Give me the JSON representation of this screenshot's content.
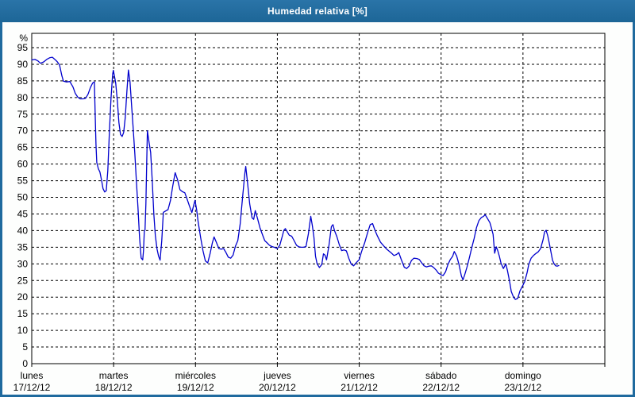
{
  "title_bar": {
    "title": "Humedad relativa [%]",
    "bg_color": "#1f6a9e",
    "text_color": "#ffffff"
  },
  "chart_data": {
    "type": "line",
    "title": "Humedad relativa [%]",
    "ylabel": "%",
    "ylim": [
      0,
      95
    ],
    "ytick_step": 5,
    "grid": "dashed",
    "legend": "none",
    "line_color": "#0000cd",
    "x_axis": {
      "unit": "day",
      "days": [
        {
          "name": "lunes",
          "date": "17/12/12"
        },
        {
          "name": "martes",
          "date": "18/12/12"
        },
        {
          "name": "miércoles",
          "date": "19/12/12"
        },
        {
          "name": "jueves",
          "date": "20/12/12"
        },
        {
          "name": "viernes",
          "date": "21/12/12"
        },
        {
          "name": "sábado",
          "date": "22/12/12"
        },
        {
          "name": "domingo",
          "date": "23/12/12"
        }
      ],
      "total_days": 7
    },
    "series": [
      {
        "points": [
          [
            0,
            91.3
          ],
          [
            0.039,
            91.5
          ],
          [
            0.077,
            91
          ],
          [
            0.106,
            90.3
          ],
          [
            0.145,
            90.7
          ],
          [
            0.184,
            91.5
          ],
          [
            0.223,
            92
          ],
          [
            0.252,
            92.1
          ],
          [
            0.281,
            91.5
          ],
          [
            0.31,
            90.8
          ],
          [
            0.339,
            89.8
          ],
          [
            0.368,
            86.5
          ],
          [
            0.387,
            84.9
          ],
          [
            0.426,
            84.7
          ],
          [
            0.465,
            84.8
          ],
          [
            0.503,
            83.2
          ],
          [
            0.532,
            81.2
          ],
          [
            0.562,
            80.1
          ],
          [
            0.591,
            79.6
          ],
          [
            0.629,
            79.6
          ],
          [
            0.658,
            79.8
          ],
          [
            0.687,
            81
          ],
          [
            0.716,
            83
          ],
          [
            0.745,
            84.4
          ],
          [
            0.765,
            84.7
          ],
          [
            0.774,
            76
          ],
          [
            0.784,
            66
          ],
          [
            0.794,
            60.5
          ],
          [
            0.813,
            58.6
          ],
          [
            0.833,
            57.6
          ],
          [
            0.852,
            55.2
          ],
          [
            0.871,
            52.6
          ],
          [
            0.891,
            51.6
          ],
          [
            0.91,
            52
          ],
          [
            0.929,
            58
          ],
          [
            0.949,
            70
          ],
          [
            0.968,
            79.5
          ],
          [
            0.988,
            87
          ],
          [
            0.997,
            88.2
          ],
          [
            1.017,
            85.5
          ],
          [
            1.026,
            84.3
          ],
          [
            1.046,
            78.8
          ],
          [
            1.065,
            72.5
          ],
          [
            1.084,
            68.9
          ],
          [
            1.104,
            68.3
          ],
          [
            1.123,
            69.5
          ],
          [
            1.142,
            74
          ],
          [
            1.162,
            82
          ],
          [
            1.181,
            88.3
          ],
          [
            1.2,
            84.7
          ],
          [
            1.22,
            77.6
          ],
          [
            1.239,
            70.7
          ],
          [
            1.259,
            63
          ],
          [
            1.278,
            55
          ],
          [
            1.297,
            47
          ],
          [
            1.317,
            38
          ],
          [
            1.336,
            31.8
          ],
          [
            1.355,
            31.2
          ],
          [
            1.365,
            34
          ],
          [
            1.375,
            39.8
          ],
          [
            1.384,
            40.2
          ],
          [
            1.394,
            48
          ],
          [
            1.404,
            60
          ],
          [
            1.413,
            70
          ],
          [
            1.433,
            66.5
          ],
          [
            1.452,
            63.5
          ],
          [
            1.472,
            55
          ],
          [
            1.491,
            45
          ],
          [
            1.51,
            38.5
          ],
          [
            1.53,
            34.5
          ],
          [
            1.549,
            32.3
          ],
          [
            1.568,
            31.1
          ],
          [
            1.588,
            37
          ],
          [
            1.607,
            45.5
          ],
          [
            1.636,
            45.9
          ],
          [
            1.665,
            46.3
          ],
          [
            1.694,
            49
          ],
          [
            1.723,
            53.5
          ],
          [
            1.752,
            57.4
          ],
          [
            1.781,
            55.3
          ],
          [
            1.81,
            52.3
          ],
          [
            1.839,
            51.7
          ],
          [
            1.869,
            51.4
          ],
          [
            1.898,
            49.4
          ],
          [
            1.927,
            47.3
          ],
          [
            1.956,
            45.4
          ],
          [
            1.975,
            47.3
          ],
          [
            1.994,
            49.1
          ],
          [
            2.014,
            46.3
          ],
          [
            2.033,
            42.5
          ],
          [
            2.062,
            38
          ],
          [
            2.091,
            34
          ],
          [
            2.12,
            30.9
          ],
          [
            2.149,
            30.3
          ],
          [
            2.178,
            33
          ],
          [
            2.207,
            36.4
          ],
          [
            2.227,
            38.1
          ],
          [
            2.256,
            36.4
          ],
          [
            2.285,
            34.6
          ],
          [
            2.314,
            34.4
          ],
          [
            2.343,
            34.6
          ],
          [
            2.372,
            33.4
          ],
          [
            2.401,
            32
          ],
          [
            2.43,
            31.7
          ],
          [
            2.459,
            32.6
          ],
          [
            2.488,
            35.3
          ],
          [
            2.517,
            37
          ],
          [
            2.546,
            42
          ],
          [
            2.575,
            50
          ],
          [
            2.604,
            57.5
          ],
          [
            2.614,
            59.3
          ],
          [
            2.633,
            55
          ],
          [
            2.662,
            48
          ],
          [
            2.691,
            43.8
          ],
          [
            2.711,
            43.4
          ],
          [
            2.73,
            46
          ],
          [
            2.759,
            43.5
          ],
          [
            2.788,
            40.8
          ],
          [
            2.817,
            38.8
          ],
          [
            2.846,
            37
          ],
          [
            2.875,
            36.3
          ],
          [
            2.904,
            35.6
          ],
          [
            2.933,
            35.2
          ],
          [
            2.972,
            34.9
          ],
          [
            3,
            34.6
          ],
          [
            3.03,
            35.6
          ],
          [
            3.059,
            38.2
          ],
          [
            3.079,
            40.1
          ],
          [
            3.098,
            40.6
          ],
          [
            3.117,
            39.8
          ],
          [
            3.146,
            38.6
          ],
          [
            3.175,
            38.3
          ],
          [
            3.204,
            37
          ],
          [
            3.234,
            35.6
          ],
          [
            3.263,
            35.1
          ],
          [
            3.292,
            35
          ],
          [
            3.321,
            35
          ],
          [
            3.35,
            35.2
          ],
          [
            3.379,
            39
          ],
          [
            3.408,
            44.3
          ],
          [
            3.427,
            41.5
          ],
          [
            3.447,
            38
          ],
          [
            3.466,
            32.3
          ],
          [
            3.485,
            30
          ],
          [
            3.514,
            28.9
          ],
          [
            3.543,
            29.8
          ],
          [
            3.563,
            33
          ],
          [
            3.582,
            32.6
          ],
          [
            3.601,
            31.2
          ],
          [
            3.63,
            35.5
          ],
          [
            3.66,
            41.2
          ],
          [
            3.679,
            41.8
          ],
          [
            3.698,
            40
          ],
          [
            3.727,
            38.2
          ],
          [
            3.756,
            35.8
          ],
          [
            3.785,
            34
          ],
          [
            3.814,
            34.2
          ],
          [
            3.843,
            33.9
          ],
          [
            3.872,
            31.7
          ],
          [
            3.902,
            29.9
          ],
          [
            3.931,
            29.4
          ],
          [
            3.969,
            30.5
          ],
          [
            4,
            31.3
          ],
          [
            4.027,
            33.6
          ],
          [
            4.066,
            36.3
          ],
          [
            4.105,
            39.6
          ],
          [
            4.134,
            41.8
          ],
          [
            4.163,
            42.1
          ],
          [
            4.192,
            40.1
          ],
          [
            4.221,
            38.4
          ],
          [
            4.26,
            36.5
          ],
          [
            4.299,
            35.4
          ],
          [
            4.337,
            34.4
          ],
          [
            4.366,
            33.8
          ],
          [
            4.395,
            33.2
          ],
          [
            4.424,
            32.5
          ],
          [
            4.454,
            32.8
          ],
          [
            4.483,
            33.4
          ],
          [
            4.512,
            31.4
          ],
          [
            4.55,
            29
          ],
          [
            4.579,
            28.6
          ],
          [
            4.608,
            29.3
          ],
          [
            4.637,
            31
          ],
          [
            4.667,
            31.7
          ],
          [
            4.705,
            31.6
          ],
          [
            4.734,
            31.3
          ],
          [
            4.763,
            30.3
          ],
          [
            4.792,
            29.4
          ],
          [
            4.821,
            29.1
          ],
          [
            4.851,
            29.3
          ],
          [
            4.88,
            29.4
          ],
          [
            4.909,
            28.9
          ],
          [
            4.938,
            28.2
          ],
          [
            4.967,
            27.2
          ],
          [
            5,
            26.7
          ],
          [
            5.025,
            26.5
          ],
          [
            5.054,
            27.6
          ],
          [
            5.083,
            29.8
          ],
          [
            5.112,
            31.3
          ],
          [
            5.141,
            32.3
          ],
          [
            5.161,
            33.7
          ],
          [
            5.19,
            32.4
          ],
          [
            5.219,
            29.8
          ],
          [
            5.248,
            26.3
          ],
          [
            5.267,
            25.2
          ],
          [
            5.287,
            26.6
          ],
          [
            5.316,
            29
          ],
          [
            5.345,
            31.8
          ],
          [
            5.374,
            34.8
          ],
          [
            5.403,
            37.6
          ],
          [
            5.432,
            40.9
          ],
          [
            5.461,
            43
          ],
          [
            5.49,
            43.9
          ],
          [
            5.519,
            44.3
          ],
          [
            5.538,
            44.8
          ],
          [
            5.567,
            43.6
          ],
          [
            5.596,
            42.4
          ],
          [
            5.616,
            40.6
          ],
          [
            5.635,
            38.9
          ],
          [
            5.654,
            33.2
          ],
          [
            5.674,
            35.1
          ],
          [
            5.693,
            33.9
          ],
          [
            5.712,
            32.2
          ],
          [
            5.732,
            30.2
          ],
          [
            5.761,
            28.6
          ],
          [
            5.79,
            30
          ],
          [
            5.809,
            28.1
          ],
          [
            5.838,
            24.6
          ],
          [
            5.857,
            21.7
          ],
          [
            5.886,
            19.9
          ],
          [
            5.906,
            19.3
          ],
          [
            5.935,
            19.6
          ],
          [
            5.964,
            21.9
          ],
          [
            6,
            23.6
          ],
          [
            6.022,
            24.7
          ],
          [
            6.051,
            27.4
          ],
          [
            6.07,
            29.8
          ],
          [
            6.099,
            31.7
          ],
          [
            6.128,
            32.5
          ],
          [
            6.157,
            33.1
          ],
          [
            6.186,
            33.6
          ],
          [
            6.216,
            34.6
          ],
          [
            6.245,
            37.2
          ],
          [
            6.264,
            39.6
          ],
          [
            6.283,
            40.1
          ],
          [
            6.303,
            38.4
          ],
          [
            6.322,
            36.1
          ],
          [
            6.341,
            33.7
          ],
          [
            6.361,
            31.1
          ],
          [
            6.38,
            30
          ],
          [
            6.4,
            29.4
          ],
          [
            6.419,
            29.3
          ],
          [
            6.438,
            29.5
          ]
        ]
      }
    ]
  }
}
